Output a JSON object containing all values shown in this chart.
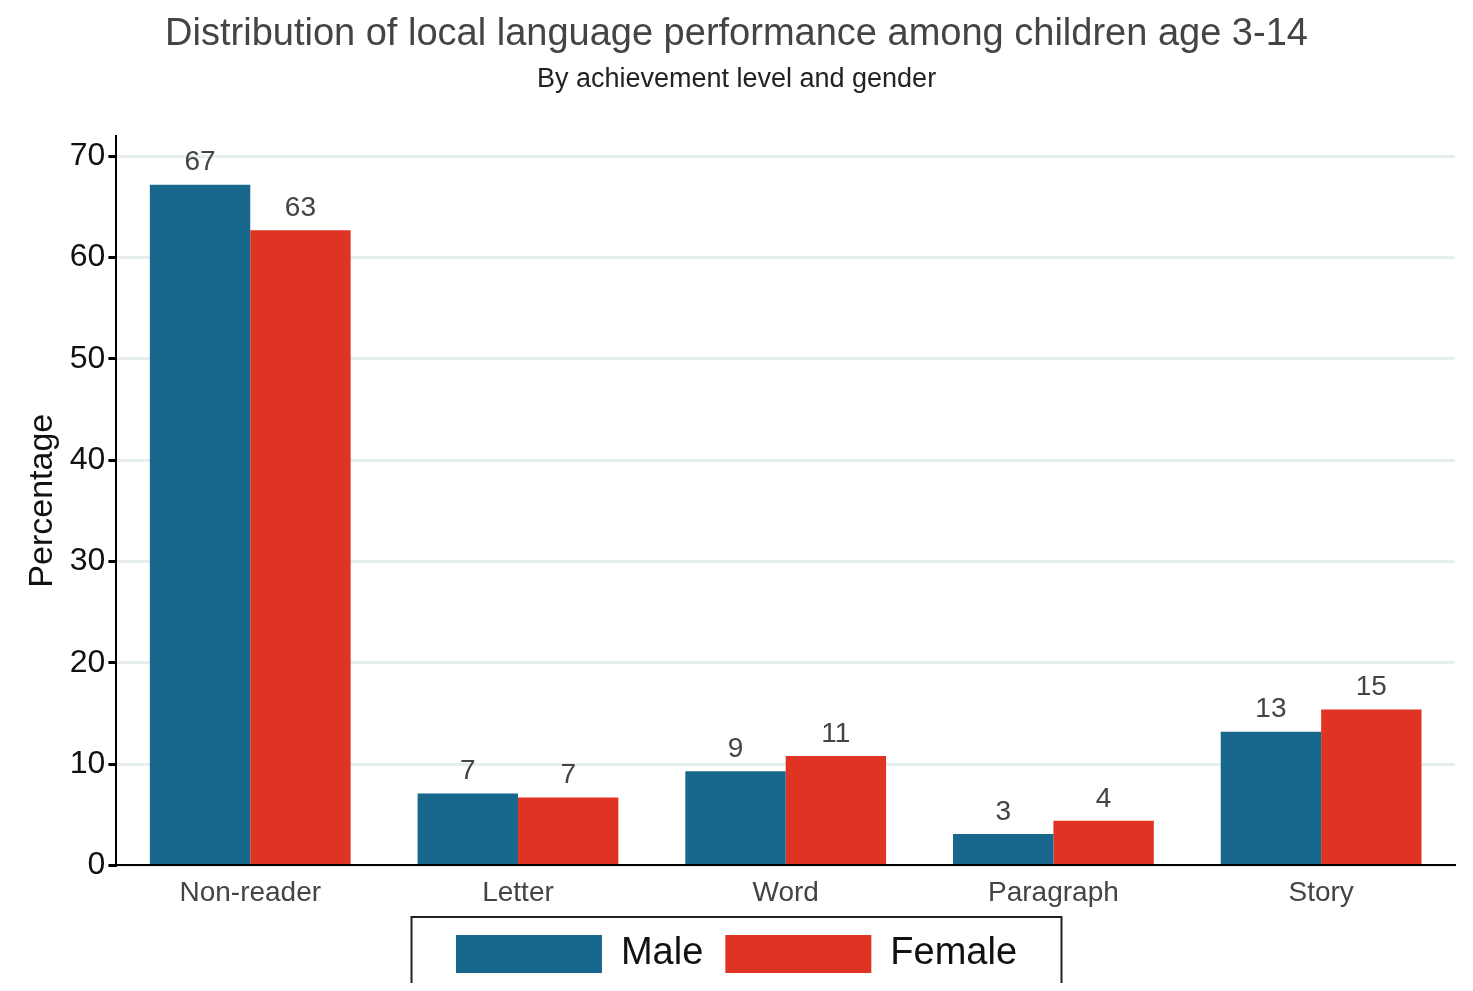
{
  "chart_data": {
    "type": "bar",
    "title": "Distribution of local language performance among children age 3-14",
    "subtitle": "By achievement level and gender",
    "ylabel": "Percentage",
    "categories": [
      "Non-reader",
      "Letter",
      "Word",
      "Paragraph",
      "Story"
    ],
    "series": [
      {
        "name": "Male",
        "color": "#17688c",
        "values": [
          67.2,
          7.1,
          9.3,
          3.1,
          13.2
        ],
        "value_labels": [
          "67",
          "7",
          "9",
          "3",
          "13"
        ]
      },
      {
        "name": "Female",
        "color": "#df3423",
        "values": [
          62.7,
          6.7,
          10.8,
          4.4,
          15.4
        ],
        "value_labels": [
          "63",
          "7",
          "11",
          "4",
          "15"
        ]
      }
    ],
    "ylim": [
      0,
      72
    ],
    "yticks": [
      0,
      10,
      20,
      30,
      40,
      50,
      60,
      70
    ],
    "grid": "y",
    "legend": "bottom"
  }
}
